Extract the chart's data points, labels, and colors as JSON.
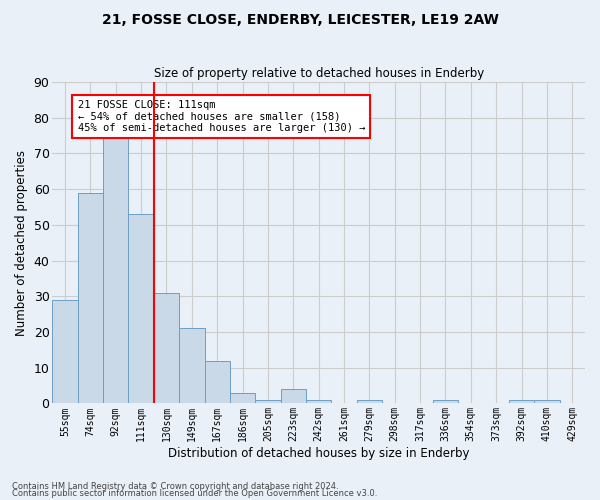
{
  "title1": "21, FOSSE CLOSE, ENDERBY, LEICESTER, LE19 2AW",
  "title2": "Size of property relative to detached houses in Enderby",
  "xlabel": "Distribution of detached houses by size in Enderby",
  "ylabel": "Number of detached properties",
  "bins": [
    "55sqm",
    "74sqm",
    "92sqm",
    "111sqm",
    "130sqm",
    "149sqm",
    "167sqm",
    "186sqm",
    "205sqm",
    "223sqm",
    "242sqm",
    "261sqm",
    "279sqm",
    "298sqm",
    "317sqm",
    "336sqm",
    "354sqm",
    "373sqm",
    "392sqm",
    "410sqm",
    "429sqm"
  ],
  "values": [
    29,
    59,
    75,
    53,
    31,
    21,
    12,
    3,
    1,
    4,
    1,
    0,
    1,
    0,
    0,
    1,
    0,
    0,
    1,
    1,
    0
  ],
  "bar_color": "#c9d9e8",
  "bar_edge_color": "#6a9fc8",
  "vline_bin_index": 3,
  "vline_color": "red",
  "annotation_text": "21 FOSSE CLOSE: 111sqm\n← 54% of detached houses are smaller (158)\n45% of semi-detached houses are larger (130) →",
  "annotation_box_color": "white",
  "annotation_box_edge_color": "red",
  "ylim": [
    0,
    90
  ],
  "yticks": [
    0,
    10,
    20,
    30,
    40,
    50,
    60,
    70,
    80,
    90
  ],
  "grid_color": "#cccccc",
  "background_color": "#eaf0f8",
  "footer1": "Contains HM Land Registry data © Crown copyright and database right 2024.",
  "footer2": "Contains public sector information licensed under the Open Government Licence v3.0."
}
